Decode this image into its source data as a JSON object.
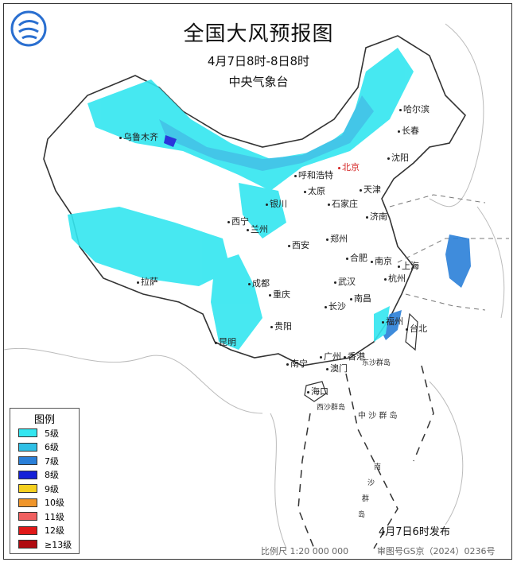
{
  "header": {
    "title": "全国大风预报图",
    "period": "4月7日8时-8日8时",
    "agency": "中央气象台",
    "logo_icon": "cma-logo-icon"
  },
  "cities": {
    "urumqi": "乌鲁木齐",
    "harbin": "哈尔滨",
    "changchun": "长春",
    "shenyang": "沈阳",
    "hohhot": "呼和浩特",
    "beijing": "北京",
    "tianjin": "天津",
    "taiyuan": "太原",
    "shijiazhuang": "石家庄",
    "yinchuan": "银川",
    "jinan": "济南",
    "xining": "西宁",
    "lanzhou": "兰州",
    "zhengzhou": "郑州",
    "xian": "西安",
    "hefei": "合肥",
    "nanjing": "南京",
    "shanghai": "上海",
    "lhasa": "拉萨",
    "chengdu": "成都",
    "wuhan": "武汉",
    "hangzhou": "杭州",
    "chongqing": "重庆",
    "nanchang": "南昌",
    "changsha": "长沙",
    "fuzhou": "福州",
    "taipei": "台北",
    "guiyang": "贵阳",
    "kunming": "昆明",
    "guangzhou": "广州",
    "hongkong": "香港",
    "macau": "澳门",
    "nanning": "南宁",
    "haikou": "海口"
  },
  "islands": {
    "dongsha": "东沙群岛",
    "xisha": "西沙群岛",
    "zhongsha": "中 沙 群 岛",
    "nansha_1": "南",
    "nansha_2": "沙",
    "nansha_3": "群",
    "nansha_4": "岛"
  },
  "legend": {
    "title": "图例",
    "items": [
      {
        "label": "5级",
        "color": "#33e6f0"
      },
      {
        "label": "6级",
        "color": "#2fc0e6"
      },
      {
        "label": "7级",
        "color": "#2a7fd8"
      },
      {
        "label": "8级",
        "color": "#1420d8"
      },
      {
        "label": "9级",
        "color": "#f5d020"
      },
      {
        "label": "10级",
        "color": "#f0952a"
      },
      {
        "label": "11级",
        "color": "#f06060"
      },
      {
        "label": "12级",
        "color": "#e01818"
      },
      {
        "label": "≥13级",
        "color": "#b00a10"
      }
    ]
  },
  "footer": {
    "published": "4月7日6时发布",
    "scale": "比例尺 1:20 000 000",
    "review_no": "审图号GS京（2024）0236号"
  }
}
